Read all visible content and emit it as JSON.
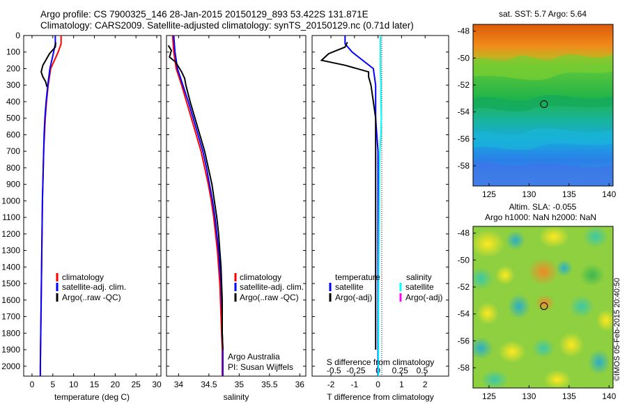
{
  "title_line1": "Argo profile: CS 7900325_146 28-Jan-2015 20150129_893 53.422S 131.871E",
  "title_line2": "Climatology: CARS2009. Satellite-adjusted climatology: synTS_20150129.nc (0.71d later)",
  "stamp": "©IMOS 05-Feb-2015 20:40:50",
  "colors": {
    "climatology": "#ff0000",
    "satellite": "#0000ff",
    "argo": "#000000",
    "salinity_satellite": "#00ffff",
    "salinity_argo": "#ff00ff"
  },
  "chart_data": [
    {
      "type": "line",
      "xlabel": "temperature (deg C)",
      "ylabel": "",
      "xlim": [
        -2,
        31
      ],
      "ylim": [
        2060,
        0
      ],
      "xticks": [
        0,
        5,
        10,
        15,
        20,
        25,
        30
      ],
      "yticks": [
        0,
        100,
        200,
        300,
        400,
        500,
        600,
        700,
        800,
        900,
        1000,
        1100,
        1200,
        1300,
        1400,
        1500,
        1600,
        1700,
        1800,
        1900,
        2000
      ],
      "legend": [
        "climatology",
        "satellite-adj. clim.",
        "Argo(..raw -QC)"
      ],
      "legend_placement": "lower-right",
      "series": [
        {
          "name": "climatology",
          "color": "#ff0000",
          "points": [
            [
              7.0,
              0
            ],
            [
              7.0,
              50
            ],
            [
              6.3,
              100
            ],
            [
              4.5,
              200
            ],
            [
              3.9,
              300
            ],
            [
              3.5,
              400
            ],
            [
              3.2,
              500
            ],
            [
              3.0,
              600
            ],
            [
              2.8,
              700
            ],
            [
              2.7,
              800
            ],
            [
              2.6,
              900
            ],
            [
              2.5,
              1000
            ],
            [
              2.4,
              1200
            ],
            [
              2.3,
              1400
            ],
            [
              2.2,
              1600
            ],
            [
              2.1,
              1800
            ],
            [
              2.0,
              2000
            ],
            [
              2.0,
              2060
            ]
          ]
        },
        {
          "name": "satellite-adj. clim.",
          "color": "#0000ff",
          "points": [
            [
              5.6,
              0
            ],
            [
              5.6,
              50
            ],
            [
              5.2,
              100
            ],
            [
              4.3,
              200
            ],
            [
              3.8,
              300
            ],
            [
              3.4,
              400
            ],
            [
              3.1,
              500
            ],
            [
              2.9,
              600
            ],
            [
              2.8,
              700
            ],
            [
              2.7,
              800
            ],
            [
              2.6,
              900
            ],
            [
              2.5,
              1000
            ],
            [
              2.4,
              1200
            ],
            [
              2.3,
              1400
            ],
            [
              2.2,
              1600
            ],
            [
              2.1,
              1800
            ],
            [
              2.0,
              2000
            ],
            [
              2.0,
              2060
            ]
          ]
        },
        {
          "name": "Argo(..raw -QC)",
          "color": "#000000",
          "points": [
            [
              5.7,
              40
            ],
            [
              5.6,
              70
            ],
            [
              4.2,
              110
            ],
            [
              3.3,
              150
            ],
            [
              2.6,
              180
            ],
            [
              2.2,
              220
            ],
            [
              2.6,
              250
            ],
            [
              3.3,
              280
            ],
            [
              3.6,
              310
            ]
          ]
        }
      ]
    },
    {
      "type": "line",
      "xlabel": "salinity",
      "ylabel": "",
      "xlim": [
        33.8,
        36.1
      ],
      "ylim": [
        2060,
        0
      ],
      "xticks": [
        34,
        34.5,
        35,
        35.5,
        36
      ],
      "legend": [
        "climatology",
        "satellite-adj. clim.",
        "Argo(..raw -QC)"
      ],
      "legend_placement": "lower-right",
      "annotations": [
        "Argo Australia",
        "PI: Susan Wijffels"
      ],
      "series": [
        {
          "name": "climatology",
          "color": "#ff0000",
          "points": [
            [
              33.9,
              0
            ],
            [
              33.92,
              100
            ],
            [
              33.96,
              200
            ],
            [
              34.05,
              300
            ],
            [
              34.13,
              400
            ],
            [
              34.21,
              500
            ],
            [
              34.29,
              600
            ],
            [
              34.37,
              700
            ],
            [
              34.43,
              800
            ],
            [
              34.49,
              900
            ],
            [
              34.54,
              1000
            ],
            [
              34.58,
              1100
            ],
            [
              34.61,
              1200
            ],
            [
              34.64,
              1300
            ],
            [
              34.66,
              1400
            ],
            [
              34.68,
              1500
            ],
            [
              34.69,
              1600
            ],
            [
              34.7,
              1700
            ],
            [
              34.71,
              1800
            ],
            [
              34.72,
              1900
            ],
            [
              34.72,
              2060
            ]
          ]
        },
        {
          "name": "satellite-adj. clim.",
          "color": "#0000ff",
          "points": [
            [
              33.92,
              0
            ],
            [
              33.94,
              100
            ],
            [
              33.98,
              200
            ],
            [
              34.07,
              300
            ],
            [
              34.16,
              400
            ],
            [
              34.24,
              500
            ],
            [
              34.32,
              600
            ],
            [
              34.4,
              700
            ],
            [
              34.46,
              800
            ],
            [
              34.51,
              900
            ],
            [
              34.56,
              1000
            ],
            [
              34.6,
              1100
            ],
            [
              34.63,
              1200
            ],
            [
              34.66,
              1300
            ],
            [
              34.68,
              1400
            ],
            [
              34.7,
              1500
            ],
            [
              34.71,
              1600
            ],
            [
              34.72,
              1700
            ],
            [
              34.72,
              1800
            ],
            [
              34.73,
              1900
            ],
            [
              34.73,
              2060
            ]
          ]
        },
        {
          "name": "Argo(..raw -QC)",
          "color": "#000000",
          "points": [
            [
              33.83,
              60
            ],
            [
              33.88,
              90
            ],
            [
              33.85,
              130
            ],
            [
              33.95,
              160
            ],
            [
              34.05,
              220
            ],
            [
              34.1,
              260
            ],
            [
              34.12,
              300
            ],
            [
              34.19,
              400
            ],
            [
              34.27,
              500
            ],
            [
              34.35,
              600
            ],
            [
              34.43,
              700
            ],
            [
              34.49,
              800
            ],
            [
              34.55,
              900
            ],
            [
              34.59,
              1000
            ],
            [
              34.63,
              1100
            ],
            [
              34.66,
              1200
            ],
            [
              34.68,
              1300
            ],
            [
              34.7,
              1400
            ],
            [
              34.71,
              1500
            ],
            [
              34.72,
              1600
            ],
            [
              34.72,
              1700
            ],
            [
              34.72,
              1800
            ],
            [
              34.73,
              1900
            ]
          ]
        }
      ]
    },
    {
      "type": "line",
      "xlabel": "T difference from climatology",
      "top_label": "S difference from climatology",
      "ylabel": "",
      "xlim": [
        -2.8,
        3
      ],
      "ylim": [
        2060,
        0
      ],
      "xticks": [
        -2,
        -1,
        0,
        1,
        2
      ],
      "xticks_top": [
        "-0.5",
        "-0.25",
        "0",
        "0.25",
        "0.5"
      ],
      "legend_headers": [
        "temperature",
        "salinity"
      ],
      "legend_left": [
        "satellite",
        "Argo(-adj)"
      ],
      "legend_right": [
        "satellite",
        "Argo(-adj)"
      ],
      "legend_placement": "lower-center",
      "series": [
        {
          "name": "temperature satellite",
          "color": "#0000ff",
          "points": [
            [
              -1.4,
              0
            ],
            [
              -1.4,
              50
            ],
            [
              -1.1,
              100
            ],
            [
              -0.2,
              200
            ],
            [
              -0.1,
              300
            ],
            [
              -0.1,
              400
            ],
            [
              -0.1,
              500
            ],
            [
              0,
              700
            ],
            [
              0,
              900
            ],
            [
              0,
              1100
            ],
            [
              0,
              1400
            ],
            [
              0,
              2060
            ]
          ]
        },
        {
          "name": "temperature Argo(-adj)",
          "color": "#000000",
          "points": [
            [
              -1.3,
              40
            ],
            [
              -1.4,
              70
            ],
            [
              -2.1,
              110
            ],
            [
              -2.4,
              150
            ],
            [
              -1.4,
              180
            ],
            [
              -0.4,
              220
            ],
            [
              -0.4,
              250
            ],
            [
              -0.3,
              300
            ],
            [
              -0.2,
              400
            ],
            [
              -0.1,
              500
            ],
            [
              -0.1,
              600
            ],
            [
              -0.1,
              800
            ],
            [
              -0.1,
              1000
            ],
            [
              -0.1,
              1400
            ],
            [
              -0.1,
              1900
            ]
          ]
        },
        {
          "name": "salinity satellite",
          "color": "#00ffff",
          "points": [
            [
              0.1,
              0
            ],
            [
              0.1,
              100
            ],
            [
              0.1,
              200
            ],
            [
              0.12,
              300
            ],
            [
              0.12,
              400
            ],
            [
              0.14,
              500
            ],
            [
              0.12,
              600
            ],
            [
              0.08,
              700
            ],
            [
              0.06,
              800
            ],
            [
              0.05,
              1000
            ],
            [
              0.04,
              1200
            ],
            [
              0.03,
              1400
            ],
            [
              0.02,
              1600
            ],
            [
              0.02,
              1800
            ],
            [
              0.02,
              2060
            ]
          ]
        }
      ]
    },
    {
      "type": "heatmap",
      "title": "sat. SST: 5.7 Argo: 5.64",
      "xticks": [
        125,
        130,
        135,
        140
      ],
      "yticks": [
        -48,
        -50,
        -52,
        -54,
        -56,
        -58
      ],
      "xlim": [
        123,
        140.5
      ],
      "ylim": [
        -59.5,
        -47.5
      ],
      "marker": [
        131.87,
        -53.42
      ]
    },
    {
      "type": "heatmap",
      "title_line1": "Altim. SLA: -0.055",
      "title_line2": "Argo h1000: NaN h2000: NaN",
      "xticks": [
        125,
        130,
        135,
        140
      ],
      "yticks": [
        -48,
        -50,
        -52,
        -54,
        -56,
        -58
      ],
      "xlim": [
        123,
        140.5
      ],
      "ylim": [
        -59.5,
        -47.5
      ],
      "marker": [
        131.87,
        -53.42
      ]
    }
  ]
}
